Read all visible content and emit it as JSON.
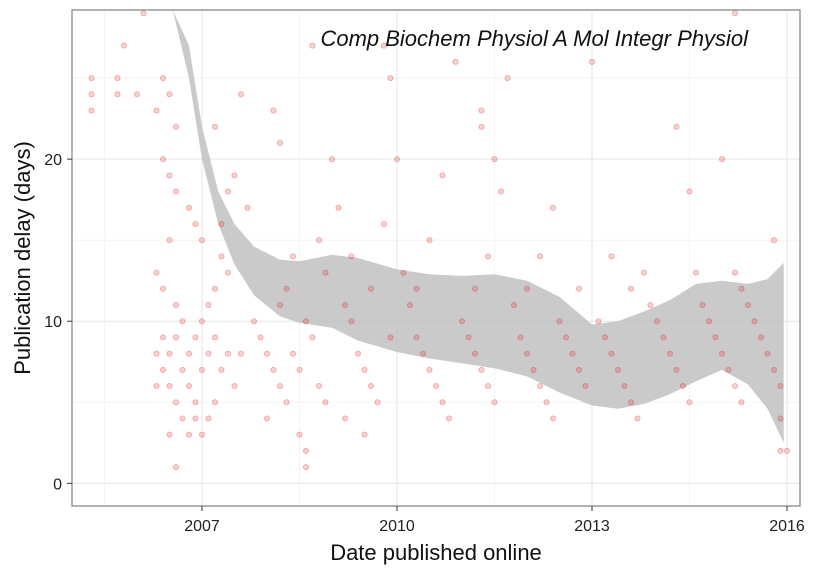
{
  "chart_data": {
    "type": "scatter",
    "title": "Comp Biochem Physiol A Mol Integr Physiol",
    "xlabel": "Date published online",
    "ylabel": "Publication delay (days)",
    "xlim": [
      2005.0,
      2016.2
    ],
    "ylim": [
      -1.4,
      29.2
    ],
    "x_ticks": [
      2007,
      2010,
      2013,
      2016
    ],
    "x_tick_labels": [
      "2007",
      "2010",
      "2013",
      "2016"
    ],
    "y_ticks": [
      0,
      10,
      20
    ],
    "y_tick_labels": [
      "0",
      "10",
      "20"
    ],
    "grid": true,
    "point_color": "#e31a1c",
    "point_opacity": 0.15,
    "band_color": "#bdbdbd",
    "points": [
      [
        2005.3,
        23
      ],
      [
        2005.3,
        24
      ],
      [
        2005.3,
        25
      ],
      [
        2005.7,
        24
      ],
      [
        2005.7,
        25
      ],
      [
        2005.8,
        27
      ],
      [
        2006.0,
        24
      ],
      [
        2006.1,
        29
      ],
      [
        2006.4,
        25
      ],
      [
        2006.5,
        24
      ],
      [
        2006.3,
        23
      ],
      [
        2006.6,
        22
      ],
      [
        2006.4,
        20
      ],
      [
        2006.5,
        19
      ],
      [
        2006.6,
        18
      ],
      [
        2006.9,
        16
      ],
      [
        2006.8,
        17
      ],
      [
        2006.5,
        15
      ],
      [
        2006.3,
        13
      ],
      [
        2006.4,
        12
      ],
      [
        2006.6,
        11
      ],
      [
        2006.7,
        10
      ],
      [
        2006.4,
        9
      ],
      [
        2006.6,
        9
      ],
      [
        2006.9,
        9
      ],
      [
        2006.3,
        8
      ],
      [
        2006.5,
        8
      ],
      [
        2006.8,
        8
      ],
      [
        2006.4,
        7
      ],
      [
        2006.7,
        7
      ],
      [
        2007.0,
        7
      ],
      [
        2006.3,
        6
      ],
      [
        2006.5,
        6
      ],
      [
        2006.8,
        6
      ],
      [
        2006.6,
        5
      ],
      [
        2006.9,
        5
      ],
      [
        2007.2,
        5
      ],
      [
        2006.7,
        4
      ],
      [
        2006.9,
        4
      ],
      [
        2007.1,
        4
      ],
      [
        2006.5,
        3
      ],
      [
        2006.8,
        3
      ],
      [
        2007.0,
        3
      ],
      [
        2006.6,
        1
      ],
      [
        2007.0,
        10
      ],
      [
        2007.1,
        8
      ],
      [
        2007.2,
        9
      ],
      [
        2007.3,
        7
      ],
      [
        2007.4,
        8
      ],
      [
        2007.5,
        6
      ],
      [
        2007.6,
        8
      ],
      [
        2007.2,
        12
      ],
      [
        2007.3,
        14
      ],
      [
        2007.1,
        11
      ],
      [
        2007.4,
        13
      ],
      [
        2007.0,
        15
      ],
      [
        2007.3,
        16
      ],
      [
        2007.2,
        22
      ],
      [
        2007.6,
        24
      ],
      [
        2007.5,
        19
      ],
      [
        2007.4,
        18
      ],
      [
        2007.7,
        17
      ],
      [
        2007.8,
        10
      ],
      [
        2007.9,
        9
      ],
      [
        2008.0,
        8
      ],
      [
        2008.1,
        7
      ],
      [
        2008.2,
        6
      ],
      [
        2008.3,
        5
      ],
      [
        2008.0,
        4
      ],
      [
        2008.2,
        11
      ],
      [
        2008.3,
        12
      ],
      [
        2008.4,
        8
      ],
      [
        2008.5,
        7
      ],
      [
        2008.6,
        10
      ],
      [
        2008.7,
        9
      ],
      [
        2008.8,
        6
      ],
      [
        2008.9,
        5
      ],
      [
        2008.5,
        3
      ],
      [
        2008.6,
        2
      ],
      [
        2008.6,
        1
      ],
      [
        2008.4,
        14
      ],
      [
        2008.1,
        23
      ],
      [
        2008.2,
        21
      ],
      [
        2008.8,
        15
      ],
      [
        2008.9,
        13
      ],
      [
        2008.7,
        27
      ],
      [
        2009.0,
        20
      ],
      [
        2009.1,
        17
      ],
      [
        2009.2,
        11
      ],
      [
        2009.3,
        10
      ],
      [
        2009.4,
        8
      ],
      [
        2009.5,
        7
      ],
      [
        2009.6,
        6
      ],
      [
        2009.7,
        5
      ],
      [
        2009.2,
        4
      ],
      [
        2009.5,
        3
      ],
      [
        2009.3,
        14
      ],
      [
        2009.6,
        12
      ],
      [
        2009.8,
        16
      ],
      [
        2009.9,
        9
      ],
      [
        2009.8,
        27
      ],
      [
        2009.9,
        25
      ],
      [
        2010.0,
        20
      ],
      [
        2010.1,
        13
      ],
      [
        2010.2,
        11
      ],
      [
        2010.3,
        9
      ],
      [
        2010.4,
        8
      ],
      [
        2010.5,
        7
      ],
      [
        2010.6,
        6
      ],
      [
        2010.7,
        5
      ],
      [
        2010.8,
        4
      ],
      [
        2010.3,
        12
      ],
      [
        2010.5,
        15
      ],
      [
        2010.7,
        19
      ],
      [
        2010.9,
        26
      ],
      [
        2011.0,
        10
      ],
      [
        2011.1,
        9
      ],
      [
        2011.2,
        8
      ],
      [
        2011.3,
        7
      ],
      [
        2011.4,
        6
      ],
      [
        2011.5,
        5
      ],
      [
        2011.2,
        12
      ],
      [
        2011.4,
        14
      ],
      [
        2011.3,
        23
      ],
      [
        2011.3,
        22
      ],
      [
        2011.5,
        20
      ],
      [
        2011.6,
        18
      ],
      [
        2011.7,
        25
      ],
      [
        2011.8,
        11
      ],
      [
        2011.9,
        9
      ],
      [
        2012.0,
        8
      ],
      [
        2012.1,
        7
      ],
      [
        2012.2,
        6
      ],
      [
        2012.3,
        5
      ],
      [
        2012.4,
        4
      ],
      [
        2012.0,
        12
      ],
      [
        2012.2,
        14
      ],
      [
        2012.4,
        17
      ],
      [
        2012.5,
        10
      ],
      [
        2012.6,
        9
      ],
      [
        2012.7,
        8
      ],
      [
        2012.8,
        7
      ],
      [
        2012.9,
        6
      ],
      [
        2012.8,
        12
      ],
      [
        2013.0,
        26
      ],
      [
        2013.1,
        10
      ],
      [
        2013.2,
        9
      ],
      [
        2013.3,
        8
      ],
      [
        2013.4,
        7
      ],
      [
        2013.5,
        6
      ],
      [
        2013.6,
        5
      ],
      [
        2013.7,
        4
      ],
      [
        2013.3,
        14
      ],
      [
        2013.6,
        12
      ],
      [
        2013.8,
        13
      ],
      [
        2013.9,
        11
      ],
      [
        2014.0,
        10
      ],
      [
        2014.1,
        9
      ],
      [
        2014.2,
        8
      ],
      [
        2014.3,
        7
      ],
      [
        2014.4,
        6
      ],
      [
        2014.5,
        5
      ],
      [
        2014.3,
        22
      ],
      [
        2014.5,
        18
      ],
      [
        2014.6,
        13
      ],
      [
        2014.7,
        11
      ],
      [
        2014.8,
        10
      ],
      [
        2014.9,
        9
      ],
      [
        2015.0,
        8
      ],
      [
        2015.1,
        7
      ],
      [
        2015.2,
        6
      ],
      [
        2015.3,
        5
      ],
      [
        2015.0,
        20
      ],
      [
        2015.2,
        29
      ],
      [
        2015.2,
        13
      ],
      [
        2015.3,
        12
      ],
      [
        2015.4,
        11
      ],
      [
        2015.5,
        10
      ],
      [
        2015.6,
        9
      ],
      [
        2015.7,
        8
      ],
      [
        2015.8,
        7
      ],
      [
        2015.9,
        6
      ],
      [
        2015.8,
        15
      ],
      [
        2015.9,
        2
      ],
      [
        2016.0,
        2
      ],
      [
        2015.9,
        4
      ]
    ],
    "band_upper": [
      [
        2006.55,
        29.2
      ],
      [
        2006.8,
        27
      ],
      [
        2007.0,
        22
      ],
      [
        2007.25,
        18
      ],
      [
        2007.5,
        16
      ],
      [
        2007.8,
        14.6
      ],
      [
        2008.2,
        13.8
      ],
      [
        2008.5,
        13.7
      ],
      [
        2009.0,
        14.1
      ],
      [
        2009.4,
        13.9
      ],
      [
        2010.0,
        13.2
      ],
      [
        2010.5,
        12.9
      ],
      [
        2011.0,
        12.8
      ],
      [
        2011.5,
        12.9
      ],
      [
        2012.0,
        12.5
      ],
      [
        2012.5,
        11.5
      ],
      [
        2013.0,
        9.8
      ],
      [
        2013.4,
        10.0
      ],
      [
        2013.8,
        10.6
      ],
      [
        2014.2,
        11.3
      ],
      [
        2014.6,
        12.3
      ],
      [
        2015.0,
        12.5
      ],
      [
        2015.4,
        12.3
      ],
      [
        2015.7,
        12.6
      ],
      [
        2015.95,
        13.6
      ]
    ],
    "band_lower": [
      [
        2006.55,
        29.2
      ],
      [
        2006.8,
        25
      ],
      [
        2007.0,
        20
      ],
      [
        2007.25,
        16
      ],
      [
        2007.5,
        13.5
      ],
      [
        2007.8,
        11.6
      ],
      [
        2008.2,
        10.3
      ],
      [
        2008.5,
        9.9
      ],
      [
        2009.0,
        9.6
      ],
      [
        2009.4,
        8.8
      ],
      [
        2010.0,
        8.1
      ],
      [
        2010.5,
        7.7
      ],
      [
        2011.0,
        7.4
      ],
      [
        2011.5,
        7.1
      ],
      [
        2012.0,
        6.6
      ],
      [
        2012.5,
        5.6
      ],
      [
        2013.0,
        4.8
      ],
      [
        2013.4,
        4.6
      ],
      [
        2013.8,
        4.9
      ],
      [
        2014.2,
        5.5
      ],
      [
        2014.6,
        6.3
      ],
      [
        2015.0,
        7.0
      ],
      [
        2015.4,
        6.1
      ],
      [
        2015.7,
        4.6
      ],
      [
        2015.95,
        2.5
      ]
    ]
  }
}
